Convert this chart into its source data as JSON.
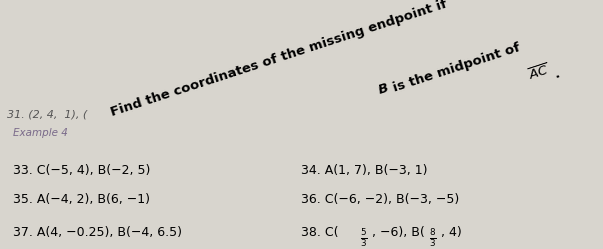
{
  "background_color": "#d8d5ce",
  "top_text": "31. (2, 4,  1), (",
  "example_label": "Example 4",
  "example_label_color": "#7a6a8a",
  "instruction_line1": "Find the coordinates of the missing endpoint if ",
  "instruction_bold": "B",
  "instruction_line2": " is the midpoint of ",
  "instruction_overline": "AC",
  "instruction_period": ".",
  "items": [
    {
      "num": "33.",
      "text": "C(−5, 4), B(−2, 5)",
      "col": 0,
      "row": 0
    },
    {
      "num": "34.",
      "text": "A(1, 7), B(−3, 1)",
      "col": 1,
      "row": 0
    },
    {
      "num": "35.",
      "text": "A(−4, 2), B(6, −1)",
      "col": 0,
      "row": 1
    },
    {
      "num": "36.",
      "text": "C(−6, −2), B(−3, −5)",
      "col": 1,
      "row": 1
    },
    {
      "num": "37.",
      "text": "A(4, −0.25), B(−4, 6.5)",
      "col": 0,
      "row": 2
    },
    {
      "num": "38.",
      "text_pre": "C(",
      "frac1_num": "5",
      "frac1_den": "3",
      "text_mid1": ", −6), B(",
      "frac2_num": "8",
      "frac2_den": "3",
      "text_mid2": ", 4)",
      "col": 1,
      "row": 2
    }
  ]
}
